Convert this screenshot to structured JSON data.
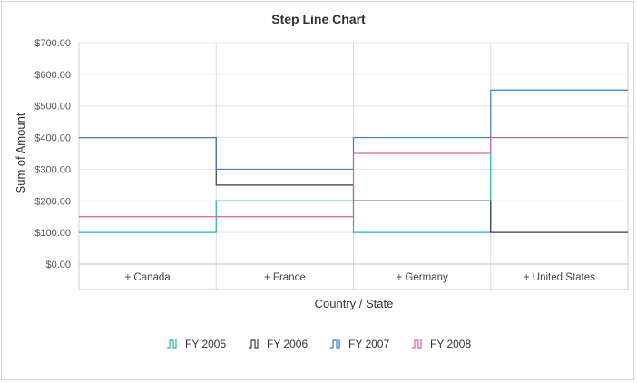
{
  "chart_data": {
    "type": "line",
    "subtype": "step",
    "title": "Step Line Chart",
    "xlabel": "Country / State",
    "ylabel": "Sum of Amount",
    "categories": [
      "+ Canada",
      "+ France",
      "+ Germany",
      "+ United States"
    ],
    "yticks": [
      "$0.00",
      "$100.00",
      "$200.00",
      "$300.00",
      "$400.00",
      "$500.00",
      "$600.00",
      "$700.00"
    ],
    "ylim": [
      0,
      700
    ],
    "grid": true,
    "legend_position": "bottom",
    "series": [
      {
        "name": "FY 2005",
        "color": "#1fb5b0",
        "values": [
          100,
          200,
          100,
          400
        ]
      },
      {
        "name": "FY 2006",
        "color": "#3d3d3d",
        "values": [
          400,
          250,
          200,
          100
        ]
      },
      {
        "name": "FY 2007",
        "color": "#3b7fc9",
        "values": [
          400,
          300,
          400,
          550
        ]
      },
      {
        "name": "FY 2008",
        "color": "#d9619e",
        "values": [
          150,
          150,
          350,
          400
        ]
      }
    ]
  }
}
